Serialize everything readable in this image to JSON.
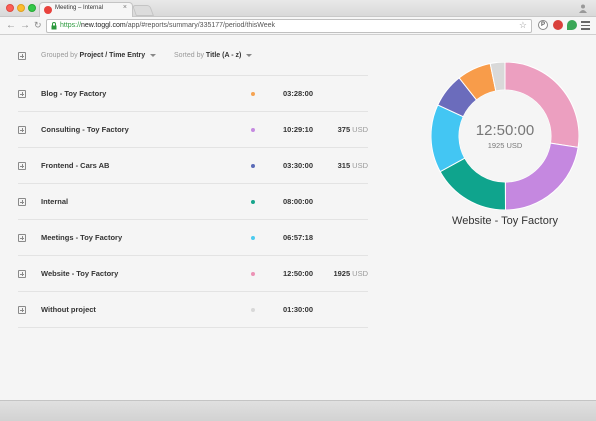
{
  "browser": {
    "tab_title": "Meeting – Internal",
    "tab_close": "×",
    "url_scheme": "https://",
    "url_host": "new.toggl.com",
    "url_path": "/app/#reports/summary/335177/period/thisWeek",
    "ext_p_label": "P"
  },
  "report": {
    "grouped_by_label": "Grouped by",
    "grouped_by_value": "Project / Time Entry",
    "sorted_by_label": "Sorted by",
    "sorted_by_value": "Title (A - z)",
    "rows": [
      {
        "title": "Blog - Toy Factory",
        "color": "#f5a352",
        "time": "03:28:00",
        "amount": "",
        "currency": ""
      },
      {
        "title": "Consulting - Toy Factory",
        "color": "#c58ae0",
        "time": "10:29:10",
        "amount": "375",
        "currency": "USD"
      },
      {
        "title": "Frontend - Cars AB",
        "color": "#5a6bb8",
        "time": "03:30:00",
        "amount": "315",
        "currency": "USD"
      },
      {
        "title": "Internal",
        "color": "#17a58c",
        "time": "08:00:00",
        "amount": "",
        "currency": ""
      },
      {
        "title": "Meetings - Toy Factory",
        "color": "#4ccbef",
        "time": "06:57:18",
        "amount": "",
        "currency": ""
      },
      {
        "title": "Website - Toy Factory",
        "color": "#ec92b5",
        "time": "12:50:00",
        "amount": "1925",
        "currency": "USD"
      },
      {
        "title": "Without project",
        "color": "#d8d8d8",
        "time": "01:30:00",
        "amount": "",
        "currency": ""
      }
    ]
  },
  "donut": {
    "center_time": "12:50:00",
    "center_amount": "1925 USD",
    "selected_title": "Website - Toy Factory"
  },
  "chart_data": {
    "type": "pie",
    "donut": true,
    "start_angle_deg": 0,
    "slices": [
      {
        "label": "Website - Toy Factory",
        "value": 12.833,
        "color": "#ec9fc0"
      },
      {
        "label": "Consulting - Toy Factory",
        "value": 10.486,
        "color": "#c588e0"
      },
      {
        "label": "Internal",
        "value": 8.0,
        "color": "#0fa48d"
      },
      {
        "label": "Meetings - Toy Factory",
        "value": 6.955,
        "color": "#43c6f3"
      },
      {
        "label": "Frontend - Cars AB",
        "value": 3.5,
        "color": "#6b6cbc"
      },
      {
        "label": "Blog - Toy Factory",
        "value": 3.467,
        "color": "#f89c4a"
      },
      {
        "label": "Without project",
        "value": 1.5,
        "color": "#d9d9d9"
      }
    ]
  }
}
